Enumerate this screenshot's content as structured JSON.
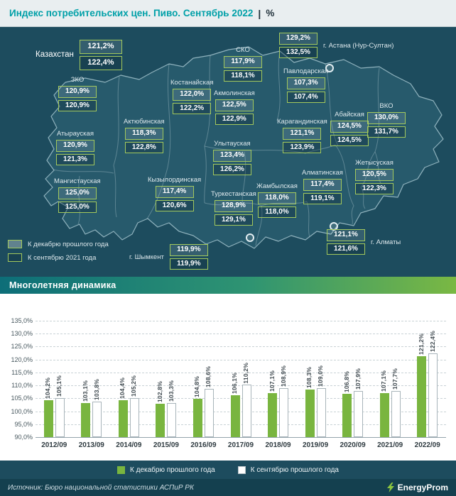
{
  "header": {
    "title": "Индекс потребительских цен. Пиво. Сентябрь 2022",
    "separator": "|",
    "unit": "%"
  },
  "colors": {
    "accent_green": "#79b53f",
    "background_teal": "#1d4c5e",
    "box_border_green": "#a3c95d",
    "title_teal": "#00a0a8"
  },
  "map": {
    "regions": [
      {
        "id": "kazakhstan",
        "name": "Казахстан",
        "to_december": "121,2%",
        "to_september": "122,4%"
      },
      {
        "id": "astana",
        "name": "г. Астана (Нур-Султан)",
        "to_december": "129,2%",
        "to_september": "132,5%"
      },
      {
        "id": "sko",
        "name": "СКО",
        "to_december": "117,9%",
        "to_september": "118,1%"
      },
      {
        "id": "pavlodar",
        "name": "Павлодарская",
        "to_december": "107,3%",
        "to_september": "107,4%"
      },
      {
        "id": "kostanay",
        "name": "Костанайская",
        "to_december": "122,0%",
        "to_september": "122,2%"
      },
      {
        "id": "akmola",
        "name": "Акмолинская",
        "to_december": "122,5%",
        "to_september": "122,9%"
      },
      {
        "id": "zko",
        "name": "ЗКО",
        "to_december": "120,9%",
        "to_september": "120,9%"
      },
      {
        "id": "aktobe",
        "name": "Актюбинская",
        "to_december": "118,3%",
        "to_september": "122,8%"
      },
      {
        "id": "atyrau",
        "name": "Атырауская",
        "to_december": "120,9%",
        "to_september": "121,3%"
      },
      {
        "id": "mangystau",
        "name": "Мангистауская",
        "to_december": "125,0%",
        "to_september": "125,0%"
      },
      {
        "id": "ulytau",
        "name": "Улытауская",
        "to_december": "123,4%",
        "to_september": "126,2%"
      },
      {
        "id": "karaganda",
        "name": "Карагандинская",
        "to_december": "121,1%",
        "to_september": "123,9%"
      },
      {
        "id": "abay",
        "name": "Абайская",
        "to_december": "124,5%",
        "to_september": "124,5%"
      },
      {
        "id": "vko",
        "name": "ВКО",
        "to_december": "130,0%",
        "to_september": "131,7%"
      },
      {
        "id": "zhetysu",
        "name": "Жетысуская",
        "to_december": "120,5%",
        "to_september": "122,3%"
      },
      {
        "id": "almaty_region",
        "name": "Алматинская",
        "to_december": "117,4%",
        "to_september": "119,1%"
      },
      {
        "id": "zhambyl",
        "name": "Жамбылская",
        "to_december": "118,0%",
        "to_september": "118,0%"
      },
      {
        "id": "turkestan",
        "name": "Туркестанская",
        "to_december": "128,9%",
        "to_september": "129,1%"
      },
      {
        "id": "kyzylorda",
        "name": "Кызылординская",
        "to_december": "117,4%",
        "to_september": "120,6%"
      },
      {
        "id": "almaty_city",
        "name": "г. Алматы",
        "to_december": "121,1%",
        "to_september": "121,6%"
      },
      {
        "id": "shymkent",
        "name": "г. Шымкент",
        "to_december": "119,9%",
        "to_september": "119,9%"
      }
    ],
    "legend": [
      {
        "label": "К декабрю прошлого года"
      },
      {
        "label": "К сентябрю 2021 года"
      }
    ]
  },
  "section2": {
    "title": "Многолетняя динамика"
  },
  "chart_data": {
    "type": "bar",
    "title": "Многолетняя динамика",
    "categories": [
      "2012/09",
      "2013/09",
      "2014/09",
      "2015/09",
      "2016/09",
      "2017/09",
      "2018/09",
      "2019/09",
      "2020/09",
      "2021/09",
      "2022/09"
    ],
    "series": [
      {
        "name": "К декабрю прошлого года",
        "color": "#79b53f",
        "values": [
          104.2,
          103.1,
          104.4,
          102.8,
          104.8,
          106.1,
          107.1,
          108.3,
          106.8,
          107.1,
          121.2
        ]
      },
      {
        "name": "К сентябрю прошлого года",
        "color": "#ffffff",
        "values": [
          105.1,
          103.8,
          105.2,
          103.3,
          108.6,
          110.2,
          108.9,
          109.0,
          107.9,
          107.7,
          122.4
        ]
      }
    ],
    "ylim": [
      90,
      135
    ],
    "ytick_step": 5,
    "ytick_labels": [
      "90,0%",
      "95,0%",
      "100,0%",
      "105,0%",
      "110,0%",
      "115,0%",
      "120,0%",
      "125,0%",
      "130,0%",
      "135,0%"
    ],
    "grid": true,
    "value_labels": "rotated-percent-comma",
    "legend_position": "bottom"
  },
  "footer": {
    "source": "Источник: Бюро национальной статистики АСПиР РК",
    "logo": "EnergyProm"
  }
}
